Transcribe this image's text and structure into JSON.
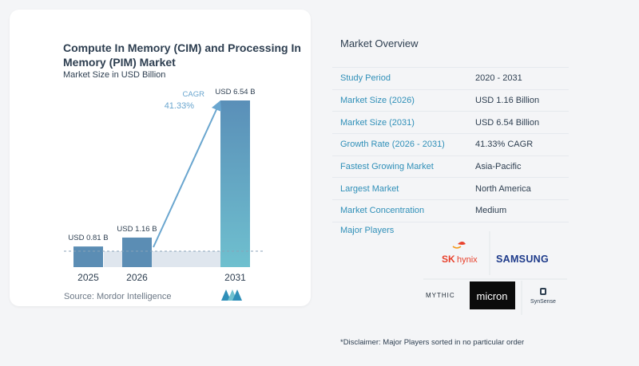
{
  "chart": {
    "title": "Compute In Memory (CIM) and Processing In Memory (PIM) Market",
    "subtitle": "Market Size in USD Billion",
    "cagr_label": "CAGR",
    "cagr_value": "41.33%",
    "source": "Source:  Mordor Intelligence"
  },
  "chart_data": {
    "type": "bar",
    "title": "Compute In Memory (CIM) and Processing In Memory (PIM) Market",
    "subtitle": "Market Size in USD Billion",
    "categories": [
      "2025",
      "2026",
      "2031"
    ],
    "values": [
      0.81,
      1.16,
      6.54
    ],
    "data_labels": [
      "USD 0.81 B",
      "USD 1.16 B",
      "USD 6.54 B"
    ],
    "ylim": [
      0,
      6.54
    ],
    "colors": [
      "#5b8db4",
      "#5b8db4",
      "#6fc0cf"
    ],
    "annotation": "CAGR 41.33%",
    "grid": false
  },
  "overview": {
    "title": "Market Overview",
    "rows": [
      {
        "label": "Study Period",
        "value": "2020 - 2031"
      },
      {
        "label": "Market Size (2026)",
        "value": "USD 1.16 Billion"
      },
      {
        "label": "Market Size (2031)",
        "value": "USD 6.54 Billion"
      },
      {
        "label": "Growth Rate (2026 - 2031)",
        "value": "41.33% CAGR"
      },
      {
        "label": "Fastest Growing Market",
        "value": "Asia-Pacific"
      },
      {
        "label": "Largest Market",
        "value": "North America"
      },
      {
        "label": "Market Concentration",
        "value": "Medium"
      }
    ],
    "players_title": "Major Players",
    "players": {
      "sk_hynix_sk": "SK",
      "sk_hynix_rest": "hynix",
      "samsung": "SAMSUNG",
      "mythic": "MYTHIC",
      "micron": "micron",
      "synsense": "SynSense"
    },
    "disclaimer": "*Disclaimer: Major Players sorted in no particular order"
  },
  "colors": {
    "accent": "#2f8fb8",
    "bar_dark": "#5b8db4",
    "bar_light": "#6fc0cf",
    "text": "#2d3e50"
  }
}
